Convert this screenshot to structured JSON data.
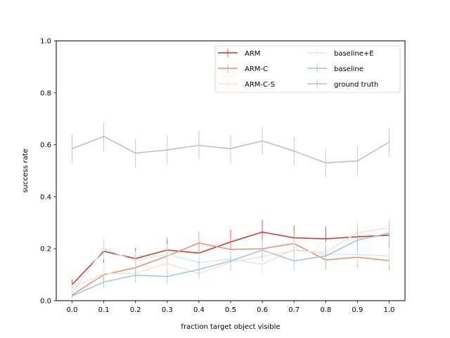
{
  "chart_data": {
    "type": "line",
    "xlabel": "fraction target object visible",
    "ylabel": "success rate",
    "xlim": [
      -0.05,
      1.05
    ],
    "ylim": [
      0.0,
      1.0
    ],
    "x": [
      0.0,
      0.1,
      0.2,
      0.3,
      0.4,
      0.5,
      0.6,
      0.7,
      0.8,
      0.9,
      1.0
    ],
    "x_ticks": [
      "0.0",
      "0.1",
      "0.2",
      "0.3",
      "0.4",
      "0.5",
      "0.6",
      "0.7",
      "0.8",
      "0.9",
      "1.0"
    ],
    "y_ticks": [
      "0.0",
      "0.2",
      "0.4",
      "0.6",
      "0.8",
      "1.0"
    ],
    "y_tick_values": [
      0.0,
      0.2,
      0.4,
      0.6,
      0.8,
      1.0
    ],
    "grid": false,
    "legend_position": "upper-right",
    "legend_columns": 2,
    "series": [
      {
        "name": "ARM",
        "color": "#d73027",
        "values": [
          0.062,
          0.19,
          0.162,
          0.195,
          0.183,
          0.226,
          0.264,
          0.242,
          0.238,
          0.246,
          0.252
        ],
        "err": [
          0.02,
          0.045,
          0.042,
          0.045,
          0.045,
          0.047,
          0.048,
          0.048,
          0.047,
          0.048,
          0.048
        ]
      },
      {
        "name": "ARM-C",
        "color": "#f4896d",
        "values": [
          0.022,
          0.1,
          0.127,
          0.172,
          0.222,
          0.197,
          0.2,
          0.22,
          0.157,
          0.167,
          0.154
        ],
        "err": [
          0.01,
          0.03,
          0.035,
          0.04,
          0.043,
          0.042,
          0.042,
          0.043,
          0.038,
          0.039,
          0.038
        ]
      },
      {
        "name": "ARM-C-S",
        "color": "#fde0cc",
        "values": [
          0.05,
          0.105,
          0.105,
          0.144,
          0.104,
          0.148,
          0.17,
          0.193,
          0.187,
          0.262,
          0.28
        ],
        "err": [
          0.015,
          0.03,
          0.03,
          0.036,
          0.03,
          0.036,
          0.039,
          0.041,
          0.04,
          0.045,
          0.047
        ]
      },
      {
        "name": "baseline+E",
        "color": "#d8e7f3",
        "values": [
          0.03,
          0.2,
          0.153,
          0.178,
          0.147,
          0.16,
          0.14,
          0.198,
          0.178,
          0.178,
          0.172
        ],
        "err": [
          0.012,
          0.042,
          0.037,
          0.039,
          0.036,
          0.037,
          0.035,
          0.041,
          0.039,
          0.039,
          0.038
        ]
      },
      {
        "name": "baseline",
        "color": "#99c5e0",
        "values": [
          0.018,
          0.072,
          0.098,
          0.093,
          0.12,
          0.153,
          0.195,
          0.153,
          0.172,
          0.233,
          0.26
        ],
        "err": [
          0.008,
          0.025,
          0.03,
          0.029,
          0.032,
          0.036,
          0.04,
          0.036,
          0.038,
          0.043,
          0.045
        ]
      },
      {
        "name": "ground truth",
        "color": "#bdbdbd",
        "values": [
          0.585,
          0.632,
          0.568,
          0.58,
          0.598,
          0.585,
          0.615,
          0.576,
          0.53,
          0.538,
          0.61
        ],
        "err": [
          0.055,
          0.055,
          0.055,
          0.055,
          0.055,
          0.055,
          0.055,
          0.055,
          0.055,
          0.055,
          0.055
        ]
      }
    ]
  }
}
